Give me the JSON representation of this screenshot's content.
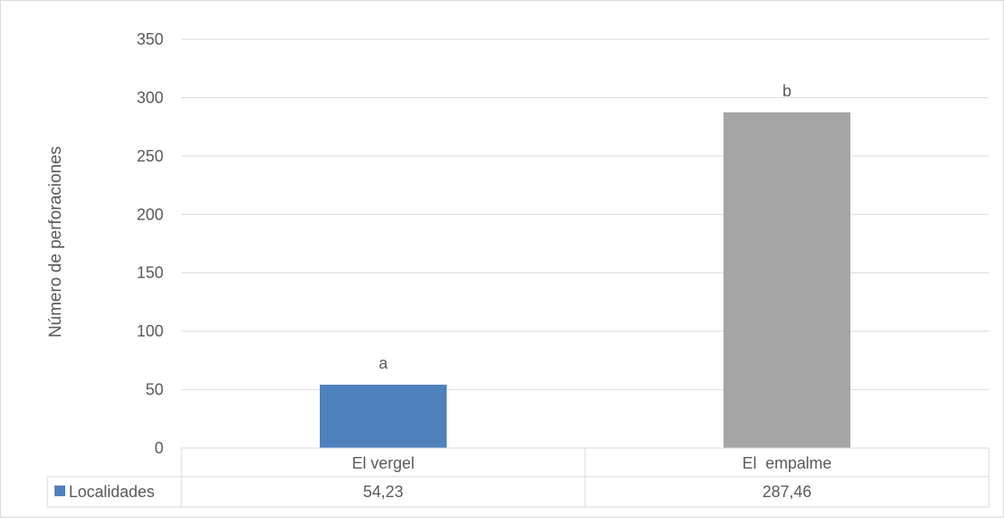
{
  "chart_data": {
    "type": "bar",
    "ylabel": "Número de perforaciones",
    "xlabel": "",
    "ylim": [
      0,
      350
    ],
    "yticks": [
      0,
      50,
      100,
      150,
      200,
      250,
      300,
      350
    ],
    "grid": true,
    "categories": [
      "El vergel",
      "El  empalme"
    ],
    "series": [
      {
        "name": "Localidades",
        "values": [
          54.23,
          287.46
        ],
        "value_labels": [
          "54,23",
          "287,46"
        ],
        "letters": [
          "a",
          "b"
        ],
        "colors": [
          "#4f81bd",
          "#a5a5a5"
        ]
      }
    ],
    "legend_placement": "data-table"
  }
}
